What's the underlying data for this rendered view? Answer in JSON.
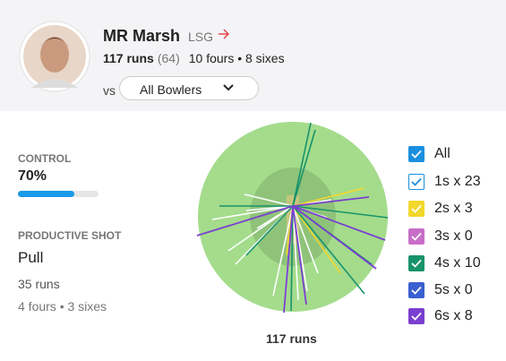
{
  "player": {
    "name": "MR Marsh",
    "team": "LSG",
    "runs": "117 runs",
    "balls": "(64)",
    "boundaries": "10 fours • 8 sixes"
  },
  "filter": {
    "prefix": "vs",
    "selected": "All Bowlers"
  },
  "control": {
    "label": "CONTROL",
    "value": "70%"
  },
  "productive_shot": {
    "label": "PRODUCTIVE SHOT",
    "shot": "Pull",
    "runs": "35 runs",
    "boundaries": "4 fours • 3 sixes"
  },
  "wagon_wheel": {
    "caption": "117 runs"
  },
  "legend": [
    {
      "label": "All",
      "color": "#1a8fe0",
      "filled": true
    },
    {
      "label": "1s x 23",
      "color": "#1a8fe0",
      "filled": false
    },
    {
      "label": "2s x 3",
      "color": "#f2d72c",
      "filled": true
    },
    {
      "label": "3s x 0",
      "color": "#c86dc8",
      "filled": true
    },
    {
      "label": "4s x 10",
      "color": "#17936b",
      "filled": true
    },
    {
      "label": "5s x 0",
      "color": "#3a5fd0",
      "filled": true
    },
    {
      "label": "6s x 8",
      "color": "#7a3fd0",
      "filled": true
    }
  ]
}
